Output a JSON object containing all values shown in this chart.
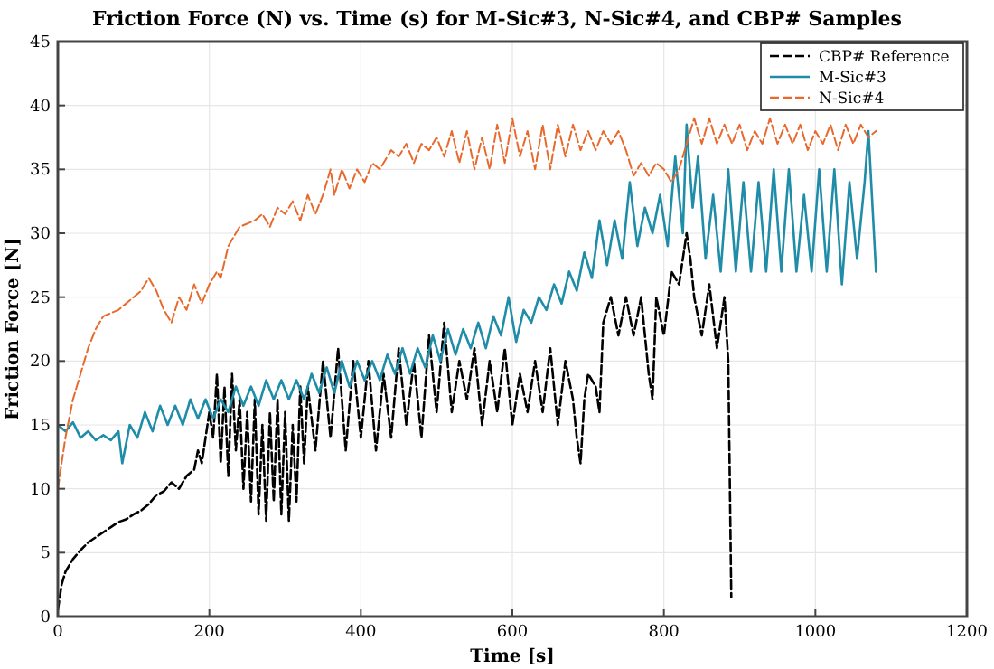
{
  "chart_data": {
    "type": "line",
    "title": "Friction Force (N) vs. Time (s) for M-Sic#3, N-Sic#4, and CBP# Samples",
    "xlabel": "Time [s]",
    "ylabel": "Friction Force [N]",
    "xlim": [
      0,
      1200
    ],
    "xticks": [
      0,
      200,
      400,
      600,
      800,
      1000,
      1200
    ],
    "ylim": [
      0,
      45
    ],
    "yticks": [
      0,
      5,
      10,
      15,
      20,
      25,
      30,
      35,
      40,
      45
    ],
    "grid": true,
    "legend": "top right",
    "series": [
      {
        "name": "CBP# Reference",
        "color": "#000000",
        "line_style": "dashed",
        "marker": "none",
        "x": [
          0,
          5,
          10,
          20,
          30,
          40,
          50,
          60,
          70,
          80,
          90,
          100,
          110,
          120,
          130,
          140,
          150,
          160,
          170,
          180,
          185,
          190,
          195,
          200,
          205,
          210,
          215,
          220,
          225,
          230,
          235,
          240,
          245,
          250,
          255,
          260,
          265,
          270,
          275,
          280,
          285,
          290,
          295,
          300,
          305,
          310,
          315,
          320,
          325,
          330,
          340,
          350,
          360,
          370,
          380,
          390,
          400,
          410,
          420,
          430,
          440,
          450,
          460,
          470,
          480,
          490,
          500,
          510,
          520,
          530,
          540,
          550,
          560,
          570,
          580,
          590,
          600,
          610,
          620,
          630,
          640,
          650,
          660,
          670,
          680,
          685,
          690,
          695,
          700,
          710,
          715,
          720,
          730,
          740,
          750,
          760,
          770,
          780,
          785,
          790,
          800,
          810,
          820,
          830,
          835,
          840,
          850,
          860,
          870,
          880,
          885,
          889
        ],
        "values": [
          0.5,
          2.5,
          3.5,
          4.5,
          5.2,
          5.8,
          6.2,
          6.6,
          7,
          7.4,
          7.6,
          8,
          8.3,
          8.8,
          9.5,
          9.8,
          10.5,
          10,
          11,
          11.5,
          13,
          12,
          14,
          16,
          14,
          19,
          12,
          18,
          11,
          19,
          13,
          17,
          10,
          16,
          9,
          17,
          8,
          15,
          7.5,
          16,
          9,
          17,
          8,
          16,
          7.5,
          15,
          9,
          18,
          12,
          18,
          13,
          20,
          14,
          21,
          13,
          20,
          14,
          20,
          13,
          19,
          14,
          21,
          15,
          20,
          14,
          22,
          16,
          23,
          16,
          20,
          17,
          21,
          15,
          20,
          16,
          21,
          15,
          19,
          16,
          20,
          16,
          21,
          15,
          20,
          17,
          14,
          12,
          17,
          19,
          18,
          16,
          23,
          25,
          22,
          25,
          22,
          25,
          19,
          17,
          25,
          22,
          27,
          26,
          30,
          28,
          25,
          22,
          26,
          21,
          25,
          20,
          1.5
        ]
      },
      {
        "name": "M-Sic#3",
        "color": "#1f8ca8",
        "line_style": "solid",
        "marker": "none",
        "x": [
          0,
          10,
          20,
          30,
          40,
          50,
          60,
          70,
          80,
          85,
          95,
          105,
          115,
          125,
          135,
          145,
          155,
          165,
          175,
          185,
          195,
          205,
          215,
          225,
          235,
          245,
          255,
          265,
          275,
          285,
          295,
          305,
          315,
          325,
          335,
          345,
          355,
          365,
          375,
          385,
          395,
          405,
          415,
          425,
          435,
          445,
          455,
          465,
          475,
          485,
          495,
          505,
          515,
          525,
          535,
          545,
          555,
          565,
          575,
          585,
          595,
          605,
          615,
          625,
          635,
          645,
          655,
          665,
          675,
          685,
          695,
          705,
          715,
          725,
          735,
          745,
          755,
          765,
          775,
          785,
          795,
          805,
          815,
          825,
          830,
          838,
          845,
          855,
          865,
          875,
          885,
          895,
          905,
          915,
          925,
          935,
          945,
          955,
          965,
          975,
          985,
          995,
          1005,
          1015,
          1025,
          1035,
          1045,
          1055,
          1065,
          1070,
          1080
        ],
        "values": [
          15,
          14.5,
          15.2,
          14,
          14.5,
          13.8,
          14.2,
          13.8,
          14.5,
          12,
          15,
          14,
          16,
          14.5,
          16.5,
          15,
          16.5,
          15,
          17,
          15.5,
          17,
          15.5,
          17,
          16,
          18,
          16.5,
          18,
          16.5,
          18.5,
          17,
          18.5,
          17,
          18.5,
          17,
          19,
          17.5,
          19.5,
          17.5,
          20,
          18,
          20,
          18.5,
          20,
          18.5,
          20.5,
          19,
          21,
          19,
          21,
          19.5,
          22,
          20,
          22.5,
          20.5,
          22.5,
          21,
          23,
          21,
          23.5,
          22,
          25,
          21.5,
          24,
          23,
          25,
          24,
          26,
          24.5,
          27,
          25.5,
          28.5,
          26.5,
          31,
          27.5,
          31,
          28,
          34,
          29,
          32,
          30,
          33,
          29,
          36,
          30,
          38.5,
          32,
          36,
          28,
          33,
          27,
          35,
          27,
          34,
          27,
          34,
          27,
          35,
          27,
          35,
          27,
          33,
          27,
          35,
          27,
          35,
          26,
          34,
          28,
          34,
          38,
          27
        ]
      },
      {
        "name": "N-Sic#4",
        "color": "#e8692b",
        "line_style": "dashed",
        "marker": "none",
        "x": [
          0,
          5,
          10,
          20,
          30,
          40,
          50,
          60,
          80,
          100,
          110,
          120,
          130,
          140,
          150,
          160,
          170,
          180,
          190,
          200,
          210,
          215,
          225,
          240,
          260,
          270,
          280,
          290,
          300,
          310,
          320,
          330,
          340,
          350,
          360,
          365,
          375,
          385,
          395,
          405,
          415,
          425,
          440,
          450,
          460,
          470,
          480,
          490,
          500,
          510,
          520,
          530,
          540,
          550,
          560,
          570,
          580,
          590,
          600,
          610,
          620,
          630,
          640,
          650,
          660,
          670,
          680,
          690,
          700,
          710,
          720,
          730,
          740,
          750,
          760,
          770,
          780,
          790,
          800,
          810,
          820,
          830,
          840,
          850,
          860,
          870,
          880,
          890,
          900,
          910,
          920,
          930,
          940,
          950,
          960,
          970,
          980,
          990,
          1000,
          1010,
          1020,
          1030,
          1040,
          1050,
          1060,
          1070,
          1080
        ],
        "values": [
          10,
          12,
          14,
          17,
          19,
          21,
          22.5,
          23.5,
          24,
          25,
          25.5,
          26.5,
          25.5,
          24,
          23,
          25,
          24,
          26,
          24.5,
          26,
          27,
          26.5,
          29,
          30.5,
          31,
          31.5,
          30.5,
          32,
          31.5,
          32.5,
          31,
          33,
          31.5,
          33,
          35,
          33,
          35,
          33.5,
          35,
          34,
          35.5,
          35,
          36.5,
          36,
          37,
          35.5,
          37,
          36.5,
          37.5,
          36,
          38,
          35.5,
          38,
          35,
          37.5,
          35,
          38.5,
          35.5,
          39,
          36,
          38,
          35,
          38.5,
          35,
          38.5,
          36,
          38.5,
          36.5,
          38,
          36.5,
          38,
          37,
          38,
          36.5,
          34.5,
          35.5,
          34.5,
          35.5,
          35,
          34,
          35,
          37,
          39,
          37,
          39,
          37,
          38.5,
          37,
          38.5,
          36.5,
          38,
          37,
          39,
          37,
          38.5,
          37,
          38.5,
          36.5,
          38,
          37,
          38.5,
          36.5,
          38.5,
          37,
          38.5,
          37.5,
          38
        ]
      }
    ]
  }
}
